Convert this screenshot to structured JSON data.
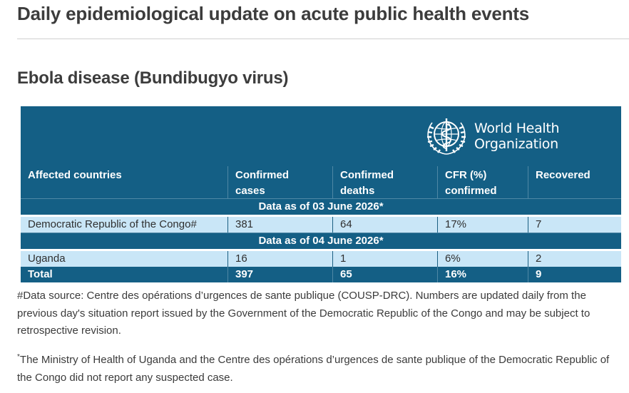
{
  "page_title": "Daily epidemiological update on acute public health events",
  "section_title": "Ebola disease (Bundibugyo virus)",
  "logo": {
    "icon": "who-emblem-icon",
    "line1": "World Health",
    "line2": "Organization"
  },
  "colors": {
    "header_bg": "#145f85",
    "row_bg": "#c9e6f7"
  },
  "table": {
    "headers": {
      "country": "Affected countries",
      "cases_1": "Confirmed",
      "cases_2": "cases",
      "deaths_1": "Confirmed",
      "deaths_2": "deaths",
      "cfr_1": "CFR (%)",
      "cfr_2": "confirmed",
      "recovered": "Recovered"
    },
    "group1_label": "Data as of 03 June 2026*",
    "drc": {
      "country": "Democratic Republic of the Congo#",
      "cases": "381",
      "deaths": "64",
      "cfr": "17%",
      "recovered": "7"
    },
    "group2_label": "Data as of 04 June 2026*",
    "uganda": {
      "country": "Uganda",
      "cases": "16",
      "deaths": "1",
      "cfr": "6%",
      "recovered": "2"
    },
    "total": {
      "label": "Total",
      "cases": "397",
      "deaths": "65",
      "cfr": "16%",
      "recovered": "9"
    }
  },
  "notes": {
    "source": "#Data source: Centre des opérations d’urgences de sante publique (COUSP-DRC). Numbers are updated daily from the previous day's situation report issued by the Government of the Democratic Republic of the Congo and may be subject to retrospective revision.",
    "marker": "*",
    "footnote": "The Ministry of Health of Uganda and the Centre des opérations d’urgences de sante publique of the Democratic Republic of the Congo did not report any suspected case."
  }
}
